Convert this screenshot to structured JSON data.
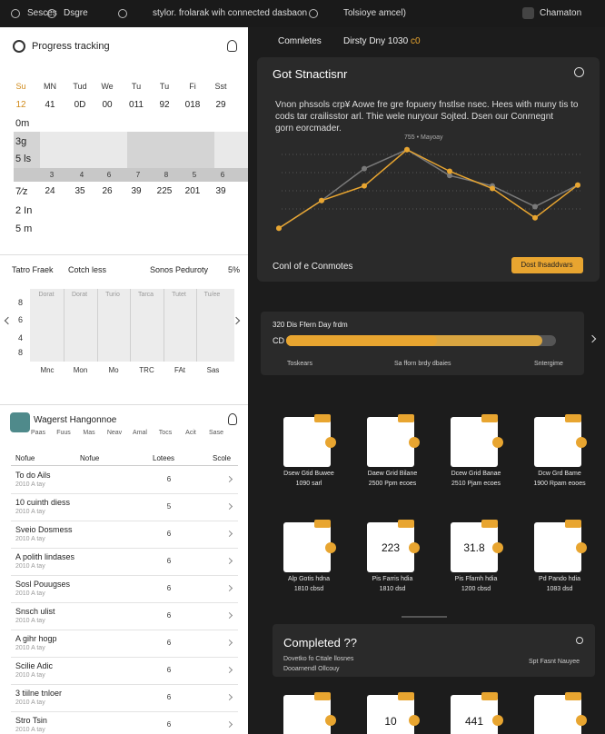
{
  "topbar": {
    "items": [
      "Sesces",
      "Dsgre",
      "stylor. frolarak wih connected dasbaon",
      "Tolsioye amcel)"
    ],
    "user": "Chamaton"
  },
  "progress": {
    "title": "Progress tracking",
    "days": [
      "Su",
      "MN",
      "Tud",
      "We",
      "Tu",
      "Tu",
      "Fi",
      "Sst"
    ],
    "row1": [
      "12",
      "41",
      "0D",
      "00",
      "011",
      "92",
      "018",
      "29"
    ],
    "side": [
      "0m",
      "3g",
      "5 ls",
      "7⁄z",
      "2 In",
      "5 m"
    ],
    "strip": [
      "3",
      "4",
      "6",
      "7",
      "8",
      "5",
      "6"
    ],
    "row2": [
      "24",
      "35",
      "26",
      "39",
      "225",
      "201",
      "39"
    ]
  },
  "panel": {
    "labels": [
      "Tatro Fraek",
      "Cotch less",
      "Sonos Peduroty",
      "5%"
    ],
    "yaxis": [
      "8",
      "6",
      "4",
      "8"
    ],
    "columns": [
      "Dorat",
      "Dorat",
      "Turio",
      "Tarca",
      "Tutet",
      "Tu/ee"
    ],
    "xaxis": [
      "Mnc",
      "Mon",
      "Mo",
      "TRC",
      "FAt",
      "Sas"
    ]
  },
  "wagers": {
    "title": "Wagerst Hangonnoe",
    "tabs": [
      "Paas",
      "Fuus",
      "Mas",
      "Neav",
      "Amal",
      "Tocs",
      "Acit",
      "Sase"
    ],
    "header": [
      "Nofue",
      "Nofue",
      "Lotees",
      "Scole"
    ],
    "rows": [
      [
        "To do Ails",
        "2010 A tay",
        "6"
      ],
      [
        "10 cuinth diess",
        "2010 A tay",
        "5"
      ],
      [
        "Sveio Dosmess",
        "2010 A tay",
        "6"
      ],
      [
        "A polith lindases",
        "2010 A tay",
        "6"
      ],
      [
        "Sosl Pouugses",
        "2010 A tay",
        "6"
      ],
      [
        "Snsch ulist",
        "2010 A tay",
        "6"
      ],
      [
        "A gihr hogp",
        "2010 A tay",
        "6"
      ],
      [
        "Scilie Adic",
        "2010 A tay",
        "6"
      ],
      [
        "3 tiilne tnloer",
        "2010 A tay",
        "6"
      ],
      [
        "Stro Tsin",
        "2010 A tay",
        "6"
      ]
    ]
  },
  "tabs": [
    "Comnletes",
    "Dirsty Dny 1030",
    "c0"
  ],
  "chart_data": {
    "type": "line",
    "title": "Got Stnactisnr",
    "text": [
      "Vnon phssols crp¥ Aowe fre gre fopuery fnstlse nsec. Hees with muny tis to",
      "cods tar crailisstor arl. Thie wele nuryour Sojted. Dsen our Conrnegnt",
      "gorn eorcmader."
    ],
    "legend": "755 • Mayoay",
    "categories": [
      null,
      null,
      null,
      null,
      null,
      null,
      null,
      null
    ],
    "ylim": [
      0,
      100
    ],
    "series": [
      {
        "color": "#7a7a7a",
        "values": [
          4,
          36,
          73,
          95,
          65,
          53,
          29,
          54
        ]
      },
      {
        "color": "#e8a530",
        "values": [
          4,
          36,
          53,
          95,
          70,
          50,
          16,
          54
        ]
      }
    ],
    "button": "Dost lhsaddvars",
    "footer": "Conl of e Conmotes"
  },
  "progresscard": {
    "title": "320 Dis Ffern Day frdm",
    "label": "CD",
    "value": 56,
    "secondary": 95,
    "max": 100,
    "captions": [
      "Toskears",
      "Sa fforn brdy dbaies",
      "Sntergime"
    ]
  },
  "tiles1": [
    [
      "Dsew Gtid Buwee",
      "1090 sarl"
    ],
    [
      "Daew Grid Bilane",
      "2500 Ppm ecoes"
    ],
    [
      "Dcew Grid Banae",
      "2510 Pjam ecoes"
    ],
    [
      "Dcw Grd Bame",
      "1900 Rpam eooes"
    ]
  ],
  "tiles2": {
    "values": [
      null,
      "223",
      "31.8",
      null
    ],
    "labels": [
      [
        "Alp Gotis hdna",
        "1810 cbsd"
      ],
      [
        "Pis Farris hdia",
        "1810 dsd"
      ],
      [
        "Pis Ffamh hdia",
        "1200 cbsd"
      ],
      [
        "Pd Pando hdia",
        "1083 dsd"
      ]
    ]
  },
  "completed": {
    "title": "Completed ??",
    "sub": [
      "Dovetko fo Cttale llosnes",
      "Dooarnendl Ollcouy"
    ],
    "right": "Spt Fasnt Nauyee"
  },
  "tiles3": [
    null,
    "10",
    "441",
    null
  ]
}
